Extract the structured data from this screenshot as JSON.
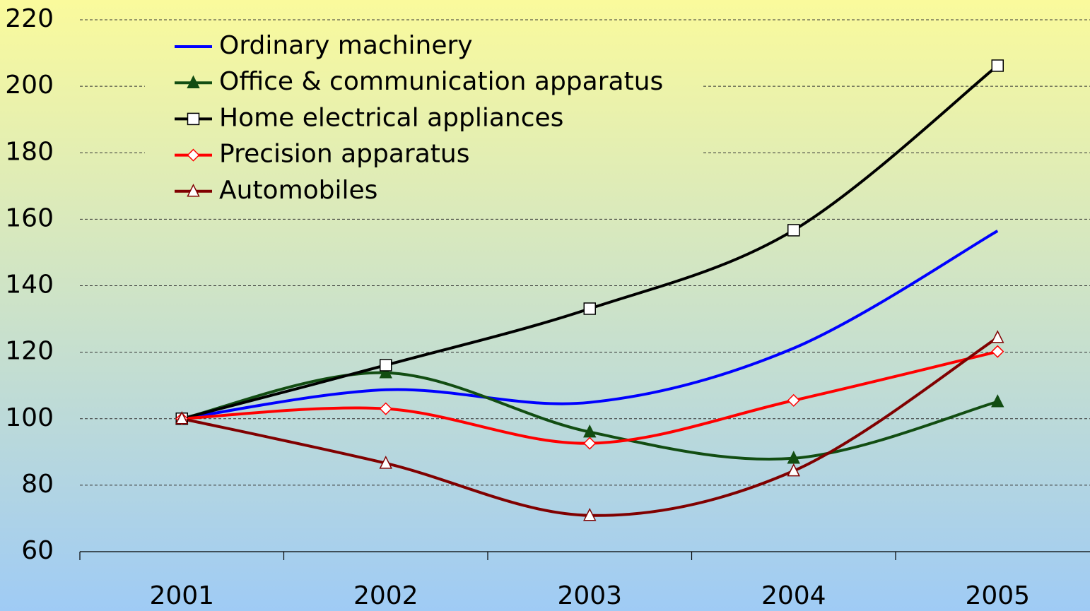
{
  "chart_data": {
    "type": "line",
    "categories": [
      "2001",
      "2002",
      "2003",
      "2004",
      "2005"
    ],
    "series": [
      {
        "name": "Ordinary machinery",
        "color": "#0000ff",
        "marker": "none",
        "values": [
          100,
          108.7,
          104.9,
          121.2,
          156.5
        ]
      },
      {
        "name": "Office & communication apparatus",
        "color": "#124d12",
        "marker": "filled-triangle",
        "values": [
          100,
          113.8,
          96,
          88.1,
          105.1
        ]
      },
      {
        "name": "Home electrical appliances",
        "color": "#000000",
        "marker": "square",
        "values": [
          100,
          116.1,
          133.1,
          156.7,
          206.2
        ]
      },
      {
        "name": "Precision apparatus",
        "color": "#ff0000",
        "marker": "diamond",
        "values": [
          100,
          103,
          92.6,
          105.5,
          120.2
        ]
      },
      {
        "name": "Automobiles",
        "color": "#800000",
        "marker": "triangle",
        "values": [
          100,
          86.6,
          70.9,
          84.3,
          124.4
        ]
      }
    ],
    "ylim": [
      60,
      220
    ],
    "yticks": [
      60,
      80,
      100,
      120,
      140,
      160,
      180,
      200,
      220
    ],
    "grid": true,
    "legend": "upper left",
    "smooth": true
  }
}
